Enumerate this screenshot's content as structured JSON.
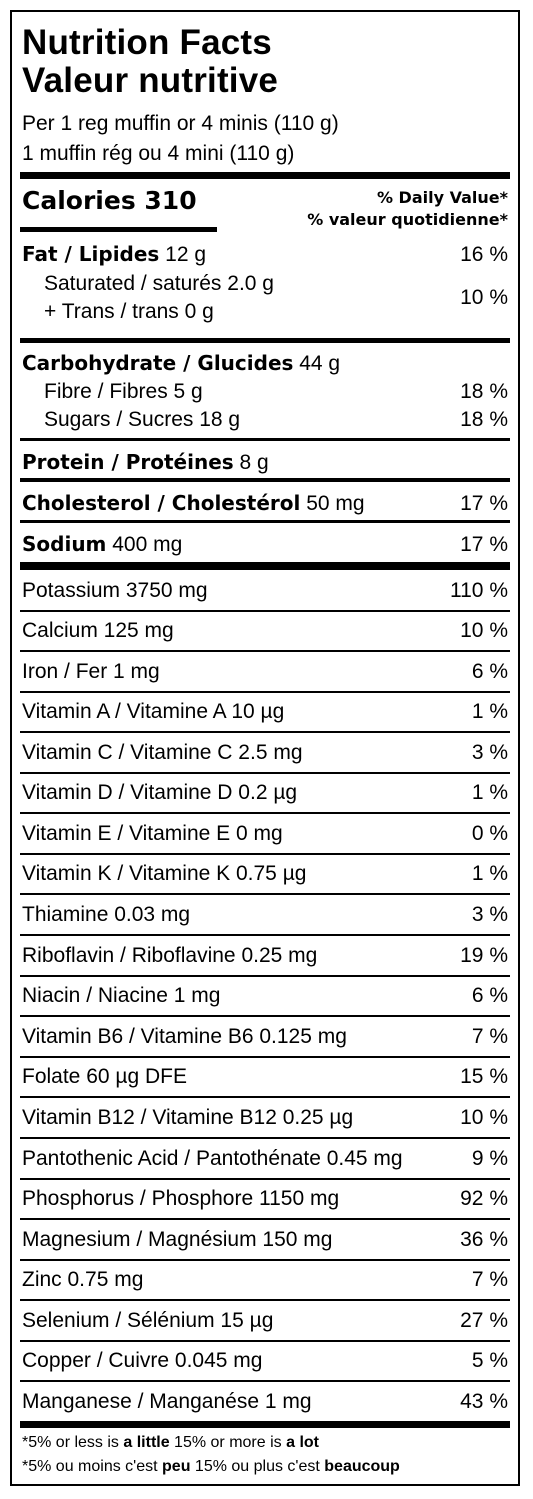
{
  "title_en": "Nutrition Facts",
  "title_fr": "Valeur nutritive",
  "serving_en": "Per 1 reg muffin or 4 minis (110 g)",
  "serving_fr": "1 muffin rég ou 4 mini (110 g)",
  "calories_label": "Calories 310",
  "dv_header_en": "% Daily Value*",
  "dv_header_fr": "% valeur quotidienne*",
  "fat": {
    "label": "Fat / Lipides",
    "amount": " 12 g",
    "pct": "16 %"
  },
  "saturated": {
    "line1": "Saturated / saturés 2.0 g",
    "line2": "+ Trans / trans 0 g",
    "pct": "10 %"
  },
  "carbohydrate": {
    "label": "Carbohydrate / Glucides",
    "amount": " 44 g"
  },
  "fibre": {
    "label": "Fibre / Fibres 5 g",
    "pct": "18 %"
  },
  "sugars": {
    "label": "Sugars / Sucres 18 g",
    "pct": "18 %"
  },
  "protein": {
    "label": "Protein / Protéines",
    "amount": " 8 g"
  },
  "cholesterol": {
    "label": "Cholesterol / Cholestérol",
    "amount": " 50 mg",
    "pct": "17 %"
  },
  "sodium": {
    "label": "Sodium",
    "amount": " 400 mg",
    "pct": "17 %"
  },
  "micros": [
    {
      "label": "Potassium 3750 mg",
      "pct": "110 %"
    },
    {
      "label": "Calcium 125 mg",
      "pct": "10 %"
    },
    {
      "label": "Iron / Fer 1 mg",
      "pct": "6 %"
    },
    {
      "label": "Vitamin A / Vitamine A 10 µg",
      "pct": "1 %"
    },
    {
      "label": "Vitamin C / Vitamine C 2.5 mg",
      "pct": "3 %"
    },
    {
      "label": "Vitamin D / Vitamine D 0.2 µg",
      "pct": "1 %"
    },
    {
      "label": "Vitamin E / Vitamine E 0 mg",
      "pct": "0 %"
    },
    {
      "label": "Vitamin K / Vitamine K 0.75 µg",
      "pct": "1 %"
    },
    {
      "label": "Thiamine 0.03 mg",
      "pct": "3 %"
    },
    {
      "label": "Riboflavin / Riboflavine 0.25 mg",
      "pct": "19 %"
    },
    {
      "label": "Niacin / Niacine 1 mg",
      "pct": "6 %"
    },
    {
      "label": "Vitamin B6 / Vitamine B6 0.125 mg",
      "pct": "7 %"
    },
    {
      "label": "Folate 60 µg DFE",
      "pct": "15 %"
    },
    {
      "label": "Vitamin B12 / Vitamine B12 0.25 µg",
      "pct": "10 %"
    },
    {
      "label": "Pantothenic Acid / Pantothénate 0.45 mg",
      "pct": "9 %"
    },
    {
      "label": "Phosphorus / Phosphore 1150 mg",
      "pct": "92 %"
    },
    {
      "label": "Magnesium / Magnésium 150 mg",
      "pct": "36 %"
    },
    {
      "label": "Zinc 0.75 mg",
      "pct": "7 %"
    },
    {
      "label": "Selenium / Sélénium 15 µg",
      "pct": "27 %"
    },
    {
      "label": "Copper / Cuivre 0.045 mg",
      "pct": "5 %"
    },
    {
      "label": "Manganese / Manganése 1 mg",
      "pct": "43 %"
    }
  ],
  "footnote_en": {
    "a": "*5% or less is ",
    "b": "a little",
    "c": " 15% or more is ",
    "d": "a lot"
  },
  "footnote_fr": {
    "a": "*5% ou moins c'est ",
    "b": "peu",
    "c": " 15% ou plus c'est ",
    "d": "beaucoup"
  }
}
